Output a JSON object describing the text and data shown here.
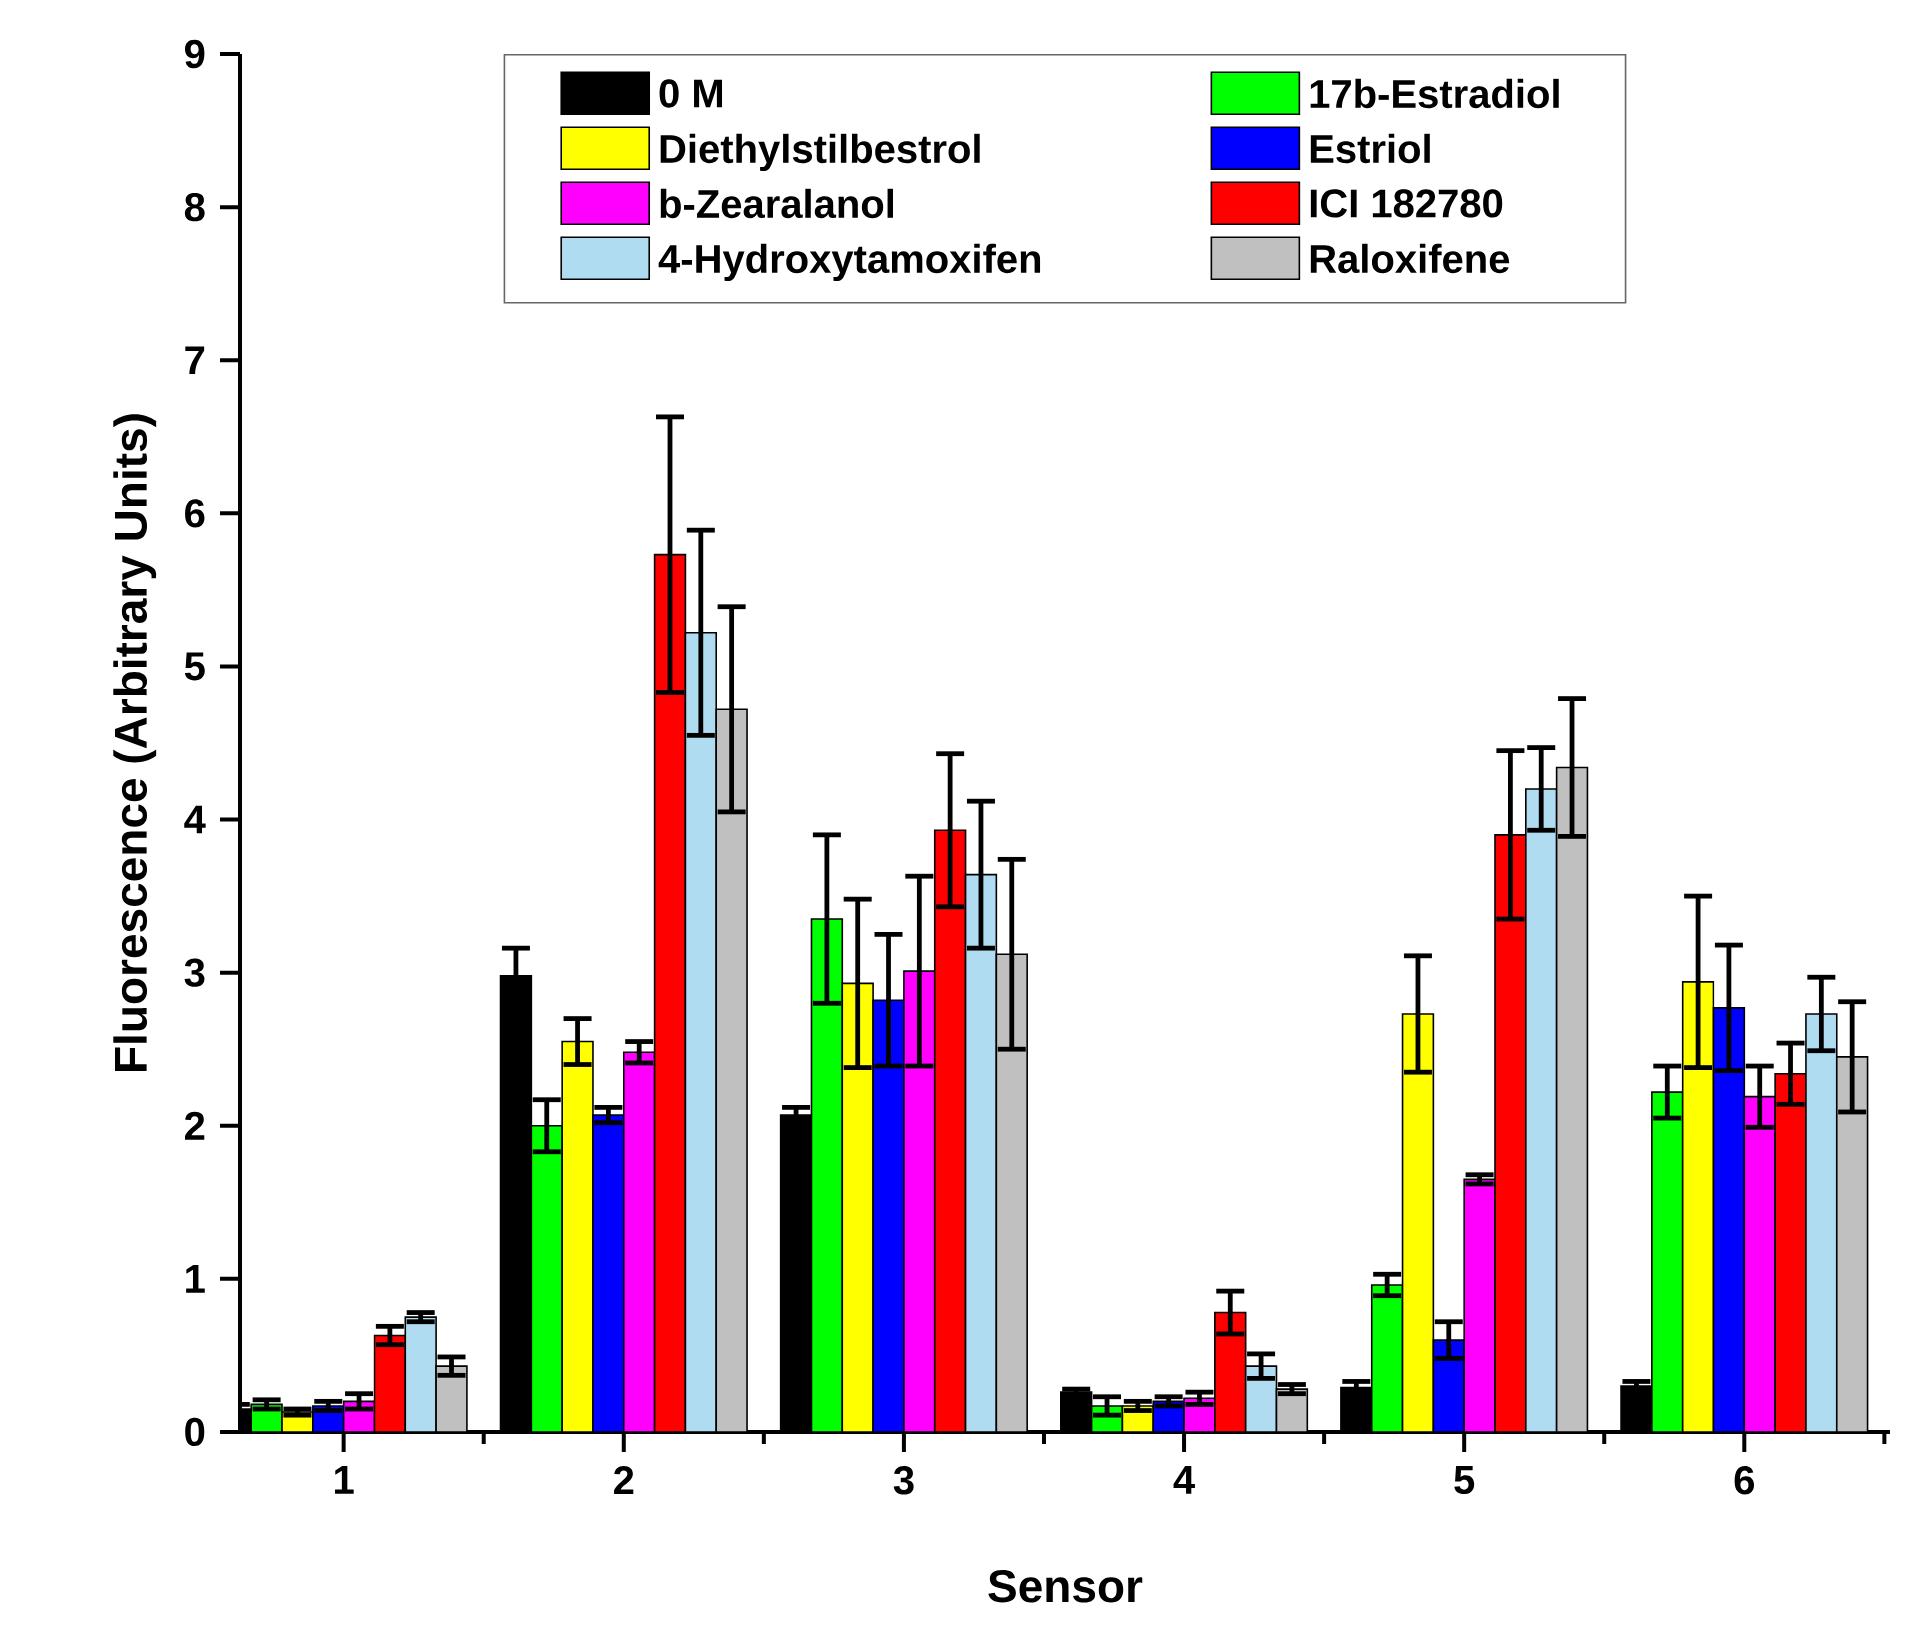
{
  "chart_data": {
    "type": "bar",
    "xlabel": "Sensor",
    "ylabel": "Fluorescence (Arbitrary Units)",
    "categories": [
      "1",
      "2",
      "3",
      "4",
      "5",
      "6"
    ],
    "ylim": [
      0,
      9
    ],
    "yticks": [
      0,
      1,
      2,
      3,
      4,
      5,
      6,
      7,
      8,
      9
    ],
    "grid": false,
    "legend": "top",
    "series": [
      {
        "name": "0 M",
        "color": "#000000",
        "values": [
          0.15,
          2.98,
          2.07,
          0.26,
          0.29,
          0.3
        ],
        "errors": [
          0.03,
          0.18,
          0.05,
          0.02,
          0.04,
          0.03
        ]
      },
      {
        "name": "17b-Estradiol",
        "color": "#00ff00",
        "values": [
          0.18,
          2.0,
          3.35,
          0.17,
          0.96,
          2.22
        ],
        "errors": [
          0.03,
          0.17,
          0.55,
          0.06,
          0.07,
          0.17
        ]
      },
      {
        "name": "Diethylstilbestrol",
        "color": "#ffff00",
        "values": [
          0.13,
          2.55,
          2.93,
          0.17,
          2.73,
          2.94
        ],
        "errors": [
          0.02,
          0.15,
          0.55,
          0.03,
          0.38,
          0.56
        ]
      },
      {
        "name": "Estriol",
        "color": "#0000ff",
        "values": [
          0.17,
          2.07,
          2.82,
          0.2,
          0.6,
          2.77
        ],
        "errors": [
          0.03,
          0.05,
          0.43,
          0.03,
          0.12,
          0.41
        ]
      },
      {
        "name": "b-Zearalanol",
        "color": "#ff00ff",
        "values": [
          0.2,
          2.48,
          3.01,
          0.22,
          1.65,
          2.19
        ],
        "errors": [
          0.05,
          0.07,
          0.62,
          0.04,
          0.03,
          0.2
        ]
      },
      {
        "name": "ICI 182780",
        "color": "#ff0000",
        "values": [
          0.63,
          5.73,
          3.93,
          0.78,
          3.9,
          2.34
        ],
        "errors": [
          0.06,
          0.9,
          0.5,
          0.14,
          0.55,
          0.2
        ]
      },
      {
        "name": "4-Hydroxytamoxifen",
        "color": "#b0dcf2",
        "values": [
          0.75,
          5.22,
          3.64,
          0.43,
          4.2,
          2.73
        ],
        "errors": [
          0.03,
          0.67,
          0.48,
          0.08,
          0.27,
          0.24
        ]
      },
      {
        "name": "Raloxifene",
        "color": "#c0c0c0",
        "values": [
          0.43,
          4.72,
          3.12,
          0.28,
          4.34,
          2.45
        ],
        "errors": [
          0.06,
          0.67,
          0.62,
          0.03,
          0.45,
          0.36
        ]
      }
    ]
  }
}
